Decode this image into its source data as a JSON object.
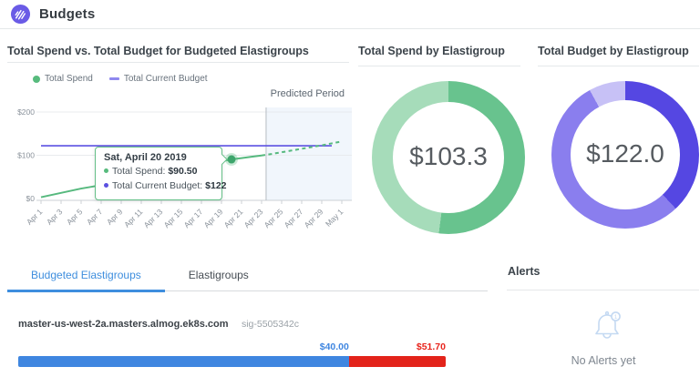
{
  "header": {
    "title": "Budgets"
  },
  "chart_data": [
    {
      "type": "line",
      "title": "Total Spend vs. Total Budget for Budgeted Elastigroups",
      "predicted_label": "Predicted Period",
      "legend": [
        {
          "label": "Total Spend",
          "color": "#57bb7d",
          "marker": "dot"
        },
        {
          "label": "Total Current Budget",
          "color": "#8f88ef",
          "marker": "dash"
        }
      ],
      "ylim": [
        0,
        200
      ],
      "y_ticks": [
        {
          "label": "$0",
          "value": 0
        },
        {
          "label": "$100",
          "value": 100
        },
        {
          "label": "$200",
          "value": 200
        }
      ],
      "x_tick_labels": [
        "Apr 1",
        "Apr 3",
        "Apr 5",
        "Apr 7",
        "Apr 9",
        "Apr 11",
        "Apr 13",
        "Apr 15",
        "Apr 17",
        "Apr 19",
        "Apr 21",
        "Apr 23",
        "Apr 25",
        "Apr 27",
        "Apr 29",
        "May 1"
      ],
      "budget_line": {
        "value": 122,
        "color": "#5c50e2",
        "x_start_day": 0,
        "x_end_day": 29
      },
      "spend_series": {
        "name": "Total Spend",
        "color": "#56b97e",
        "actual": [
          [
            0,
            3
          ],
          [
            1,
            8
          ],
          [
            2,
            13
          ],
          [
            3,
            18
          ],
          [
            4,
            23
          ],
          [
            5,
            27
          ],
          [
            6,
            31
          ],
          [
            7,
            36
          ],
          [
            8,
            40
          ],
          [
            9,
            45
          ],
          [
            10,
            49
          ],
          [
            11,
            54
          ],
          [
            12,
            58
          ],
          [
            13,
            63
          ],
          [
            14,
            67
          ],
          [
            15,
            72
          ],
          [
            16,
            76
          ],
          [
            17,
            81
          ],
          [
            18,
            86
          ],
          [
            19,
            90.5
          ],
          [
            20,
            93.5
          ],
          [
            21,
            96.5
          ],
          [
            22,
            99.5
          ]
        ],
        "predicted": [
          [
            22,
            99.5
          ],
          [
            23,
            103
          ],
          [
            24,
            107
          ],
          [
            25,
            111
          ],
          [
            26,
            115
          ],
          [
            27,
            119
          ],
          [
            28,
            123
          ],
          [
            29,
            127.5
          ],
          [
            30,
            132
          ]
        ]
      },
      "predicted_region": {
        "start_day": 22.45,
        "end_day": 31,
        "fill": "#eaf1fa",
        "line_color": "#b6bcc2"
      },
      "marker": {
        "day": 19,
        "value": 90.5
      },
      "tooltip": {
        "title": "Sat, April 20 2019",
        "rows": [
          {
            "label": "Total Spend:",
            "value": "$90.50",
            "bullet": "#57bb7d"
          },
          {
            "label": "Total Current Budget:",
            "value": "$122",
            "bullet": "#5b50e0"
          }
        ]
      }
    },
    {
      "type": "donut",
      "title": "Total Spend by Elastigroup",
      "center_label": "$103.3",
      "segments": [
        {
          "pct": 52,
          "color": "#68c38e"
        },
        {
          "pct": 48,
          "color": "#a6dcba"
        }
      ]
    },
    {
      "type": "donut",
      "title": "Total Budget by Elastigroup",
      "center_label": "$122.0",
      "segments": [
        {
          "pct": 38,
          "color": "#5547e2"
        },
        {
          "pct": 54,
          "color": "#8a7eee"
        },
        {
          "pct": 8,
          "color": "#c7c1f6"
        }
      ]
    }
  ],
  "tabs": [
    {
      "label": "Budgeted Elastigroups",
      "active": true
    },
    {
      "label": "Elastigroups",
      "active": false
    }
  ],
  "budget_rows": [
    {
      "name": "master-us-west-2a.masters.almog.ek8s.com",
      "sig": "sig-5505342c",
      "spend_label": "$40.00",
      "limit_label": "$51.70",
      "spend_value": 40.0,
      "limit_value": 51.7,
      "spend_color": "#3f86e0",
      "over_color": "#e3231a"
    }
  ],
  "alerts": {
    "title": "Alerts",
    "empty_text": "No Alerts yet"
  }
}
